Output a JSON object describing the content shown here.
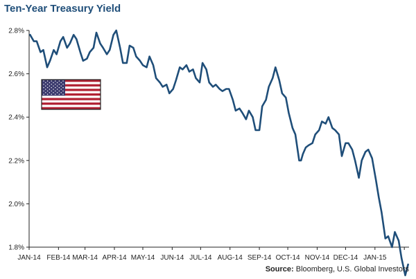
{
  "title": "Ten-Year Treasury Yield",
  "source_label": "Source:",
  "source_text": "Bloomberg, U.S. Global Investors",
  "colors": {
    "line": "#1f4e79",
    "title": "#1f4e79",
    "flag_red": "#b22234",
    "flag_blue": "#3c3b6e"
  },
  "icons": {
    "flag": "us-flag-icon"
  },
  "chart_data": {
    "type": "line",
    "title": "Ten-Year Treasury Yield",
    "xlabel": "",
    "ylabel": "",
    "ylim": [
      1.8,
      2.8
    ],
    "grid": false,
    "y_ticks": [
      {
        "value": 1.8,
        "label": "1.8%"
      },
      {
        "value": 2.0,
        "label": "2.0%"
      },
      {
        "value": 2.2,
        "label": "2.2%"
      },
      {
        "value": 2.4,
        "label": "2.4%"
      },
      {
        "value": 2.6,
        "label": "2.6%"
      },
      {
        "value": 2.8,
        "label": "2.8%"
      }
    ],
    "x_ticks": [
      "JAN-14",
      "FEB-14",
      "MAR-14",
      "APR-14",
      "MAY-14",
      "JUN-14",
      "JUL-14",
      "AUG-14",
      "SEP-14",
      "OCT-14",
      "NOV-14",
      "DEC-14",
      "JAN-15"
    ],
    "x_range": [
      "2014-01-01",
      "2015-02-06"
    ],
    "series": [
      {
        "values": [
          [
            "2014-01-02",
            2.78
          ],
          [
            "2014-01-06",
            2.75
          ],
          [
            "2014-01-09",
            2.75
          ],
          [
            "2014-01-13",
            2.7
          ],
          [
            "2014-01-16",
            2.71
          ],
          [
            "2014-01-20",
            2.63
          ],
          [
            "2014-01-23",
            2.66
          ],
          [
            "2014-01-27",
            2.71
          ],
          [
            "2014-01-30",
            2.69
          ],
          [
            "2014-02-03",
            2.75
          ],
          [
            "2014-02-06",
            2.77
          ],
          [
            "2014-02-10",
            2.72
          ],
          [
            "2014-02-13",
            2.74
          ],
          [
            "2014-02-17",
            2.78
          ],
          [
            "2014-02-20",
            2.76
          ],
          [
            "2014-02-24",
            2.7
          ],
          [
            "2014-02-27",
            2.66
          ],
          [
            "2014-03-03",
            2.67
          ],
          [
            "2014-03-06",
            2.7
          ],
          [
            "2014-03-10",
            2.72
          ],
          [
            "2014-03-13",
            2.79
          ],
          [
            "2014-03-17",
            2.74
          ],
          [
            "2014-03-20",
            2.72
          ],
          [
            "2014-03-24",
            2.69
          ],
          [
            "2014-03-27",
            2.71
          ],
          [
            "2014-03-31",
            2.78
          ],
          [
            "2014-04-03",
            2.8
          ],
          [
            "2014-04-07",
            2.72
          ],
          [
            "2014-04-10",
            2.65
          ],
          [
            "2014-04-14",
            2.65
          ],
          [
            "2014-04-17",
            2.73
          ],
          [
            "2014-04-21",
            2.72
          ],
          [
            "2014-04-24",
            2.68
          ],
          [
            "2014-04-28",
            2.66
          ],
          [
            "2014-05-01",
            2.64
          ],
          [
            "2014-05-05",
            2.63
          ],
          [
            "2014-05-08",
            2.68
          ],
          [
            "2014-05-12",
            2.64
          ],
          [
            "2014-05-15",
            2.58
          ],
          [
            "2014-05-19",
            2.56
          ],
          [
            "2014-05-22",
            2.54
          ],
          [
            "2014-05-26",
            2.55
          ],
          [
            "2014-05-29",
            2.51
          ],
          [
            "2014-06-02",
            2.53
          ],
          [
            "2014-06-05",
            2.57
          ],
          [
            "2014-06-09",
            2.63
          ],
          [
            "2014-06-12",
            2.62
          ],
          [
            "2014-06-16",
            2.64
          ],
          [
            "2014-06-19",
            2.61
          ],
          [
            "2014-06-23",
            2.62
          ],
          [
            "2014-06-26",
            2.58
          ],
          [
            "2014-06-30",
            2.56
          ],
          [
            "2014-07-03",
            2.65
          ],
          [
            "2014-07-07",
            2.62
          ],
          [
            "2014-07-10",
            2.56
          ],
          [
            "2014-07-14",
            2.54
          ],
          [
            "2014-07-17",
            2.55
          ],
          [
            "2014-07-21",
            2.53
          ],
          [
            "2014-07-24",
            2.52
          ],
          [
            "2014-07-28",
            2.53
          ],
          [
            "2014-07-31",
            2.53
          ],
          [
            "2014-08-04",
            2.48
          ],
          [
            "2014-08-07",
            2.43
          ],
          [
            "2014-08-11",
            2.44
          ],
          [
            "2014-08-14",
            2.42
          ],
          [
            "2014-08-18",
            2.39
          ],
          [
            "2014-08-21",
            2.43
          ],
          [
            "2014-08-25",
            2.4
          ],
          [
            "2014-08-28",
            2.34
          ],
          [
            "2014-09-01",
            2.34
          ],
          [
            "2014-09-04",
            2.45
          ],
          [
            "2014-09-08",
            2.48
          ],
          [
            "2014-09-11",
            2.54
          ],
          [
            "2014-09-15",
            2.58
          ],
          [
            "2014-09-18",
            2.63
          ],
          [
            "2014-09-22",
            2.57
          ],
          [
            "2014-09-25",
            2.51
          ],
          [
            "2014-09-29",
            2.49
          ],
          [
            "2014-10-02",
            2.42
          ],
          [
            "2014-10-06",
            2.35
          ],
          [
            "2014-10-09",
            2.32
          ],
          [
            "2014-10-13",
            2.2
          ],
          [
            "2014-10-15",
            2.2
          ],
          [
            "2014-10-17",
            2.23
          ],
          [
            "2014-10-20",
            2.26
          ],
          [
            "2014-10-23",
            2.27
          ],
          [
            "2014-10-27",
            2.28
          ],
          [
            "2014-10-30",
            2.32
          ],
          [
            "2014-11-03",
            2.34
          ],
          [
            "2014-11-06",
            2.38
          ],
          [
            "2014-11-10",
            2.37
          ],
          [
            "2014-11-13",
            2.4
          ],
          [
            "2014-11-17",
            2.35
          ],
          [
            "2014-11-20",
            2.34
          ],
          [
            "2014-11-24",
            2.32
          ],
          [
            "2014-11-27",
            2.22
          ],
          [
            "2014-12-01",
            2.28
          ],
          [
            "2014-12-04",
            2.28
          ],
          [
            "2014-12-08",
            2.25
          ],
          [
            "2014-12-11",
            2.2
          ],
          [
            "2014-12-15",
            2.12
          ],
          [
            "2014-12-18",
            2.2
          ],
          [
            "2014-12-22",
            2.24
          ],
          [
            "2014-12-25",
            2.25
          ],
          [
            "2014-12-29",
            2.21
          ],
          [
            "2015-01-02",
            2.11
          ],
          [
            "2015-01-05",
            2.03
          ],
          [
            "2015-01-08",
            1.96
          ],
          [
            "2015-01-12",
            1.84
          ],
          [
            "2015-01-15",
            1.85
          ],
          [
            "2015-01-19",
            1.8
          ],
          [
            "2015-01-22",
            1.87
          ],
          [
            "2015-01-26",
            1.83
          ],
          [
            "2015-01-29",
            1.75
          ],
          [
            "2015-02-02",
            1.67
          ],
          [
            "2015-02-05",
            1.72
          ]
        ]
      }
    ]
  }
}
